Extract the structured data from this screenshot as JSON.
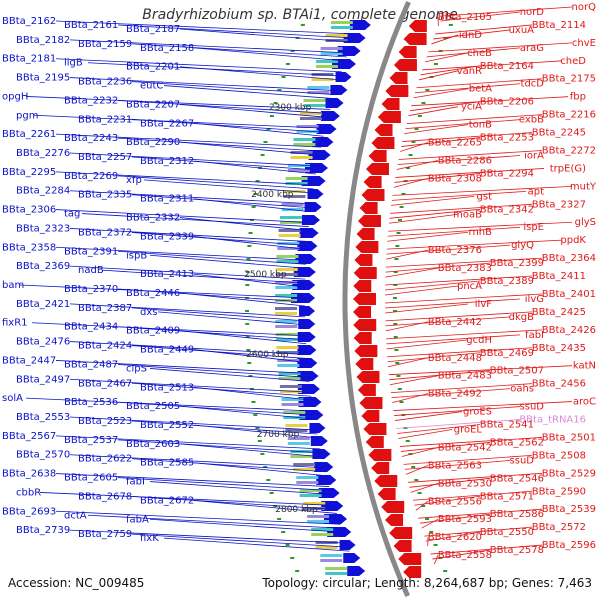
{
  "title": "Bradyrhizobium sp. BTAi1, complete genome",
  "footer": {
    "accession": "Accession: NC_009485",
    "summary": "Topology: circular; Length: 8,264,687 bp; Genes: 7,463"
  },
  "colors": {
    "forward_label": "#0a12c8",
    "reverse_label": "#e01818",
    "rna_label": "#d88ad8",
    "backbone": "#888888",
    "tick_mark": "#2a9a2a"
  },
  "scale_labels": [
    "2300 kbp",
    "2400 kbp",
    "2500 kbp",
    "2600 kbp",
    "2700 kbp",
    "2800 kbp"
  ],
  "left_labels": [
    "BBta_2162",
    "BBta_2161",
    "BBta_2187",
    "BBta_2182",
    "BBta_2159",
    "BBta_2158",
    "BBta_2181",
    "ligB",
    "BBta_2201",
    "BBta_2195",
    "BBta_2236",
    "eutC",
    "opgH",
    "BBta_2232",
    "BBta_2207",
    "pgm",
    "BBta_2231",
    "BBta_2267",
    "BBta_2261",
    "BBta_2243",
    "BBta_2290",
    "BBta_2276",
    "BBta_2257",
    "BBta_2312",
    "BBta_2295",
    "BBta_2269",
    "xfp",
    "BBta_2284",
    "BBta_2335",
    "BBta_2311",
    "BBta_2306",
    "tag",
    "BBta_2332",
    "BBta_2323",
    "BBta_2372",
    "BBta_2339",
    "BBta_2358",
    "BBta_2391",
    "ispB",
    "BBta_2369",
    "nadB",
    "BBta_2413",
    "bam",
    "BBta_2370",
    "BBta_2446",
    "BBta_2421",
    "BBta_2387",
    "dxs",
    "fixR1",
    "BBta_2434",
    "BBta_2409",
    "BBta_2476",
    "BBta_2424",
    "BBta_2449",
    "BBta_2447",
    "BBta_2487",
    "clpS",
    "BBta_2497",
    "BBta_2467",
    "BBta_2513",
    "solA",
    "BBta_2536",
    "BBta_2505",
    "BBta_2553",
    "BBta_2523",
    "BBta_2552",
    "BBta_2567",
    "BBta_2537",
    "BBta_2603",
    "BBta_2570",
    "BBta_2622",
    "BBta_2585",
    "BBta_2638",
    "BBta_2605",
    "fabI",
    "cbbR",
    "BBta_2678",
    "BBta_2672",
    "BBta_2693",
    "dctA",
    "fabA",
    "BBta_2739",
    "BBta_2759",
    "fixK"
  ],
  "right_labels": [
    "norQ",
    "norD",
    "BBta_2105",
    "BBta_2114",
    "uxuA",
    "idnD",
    "chvE",
    "araG",
    "cheB",
    "cheD",
    "BBta_2164",
    "vanR",
    "BBta_2175",
    "tdcD",
    "betA",
    "fbp",
    "BBta_2206",
    "yciA",
    "BBta_2216",
    "exbB",
    "tonB",
    "BBta_2245",
    "BBta_2253",
    "BBta_2265",
    "BBta_2272",
    "iorA",
    "BBta_2286",
    "trpE(G)",
    "BBta_2294",
    "BBta_2308",
    "mutY",
    "apt",
    "gst",
    "BBta_2327",
    "BBta_2342",
    "moaB",
    "glyS",
    "ispE",
    "rnhB",
    "ppdK",
    "glyQ",
    "BBta_2376",
    "BBta_2364",
    "BBta_2399",
    "BBta_2383",
    "BBta_2411",
    "BBta_2389",
    "pncA",
    "BBta_2401",
    "ilvG",
    "ilvF",
    "BBta_2425",
    "dkgB",
    "BBta_2442",
    "BBta_2426",
    "fabI",
    "gcdH",
    "BBta_2435",
    "BBta_2469",
    "BBta_2448",
    "katN",
    "BBta_2507",
    "BBta_2483",
    "BBta_2456",
    "oahs",
    "BBta_2492",
    "aroC",
    "ssuD",
    "groES",
    "BBta_tRNA16",
    "BBta_2541",
    "groEL",
    "BBta_2501",
    "BBta_2562",
    "BBta_2542",
    "BBta_2508",
    "ssuD",
    "BBta_2563",
    "BBta_2529",
    "BBta_2546",
    "BBta_2530",
    "BBta_2590",
    "BBta_2571",
    "BBta_2556",
    "BBta_2539",
    "BBta_2586",
    "BBta_2593",
    "BBta_2572",
    "BBta_2550",
    "BBta_2620",
    "BBta_2596",
    "BBta_2578",
    "BBta_2558"
  ]
}
